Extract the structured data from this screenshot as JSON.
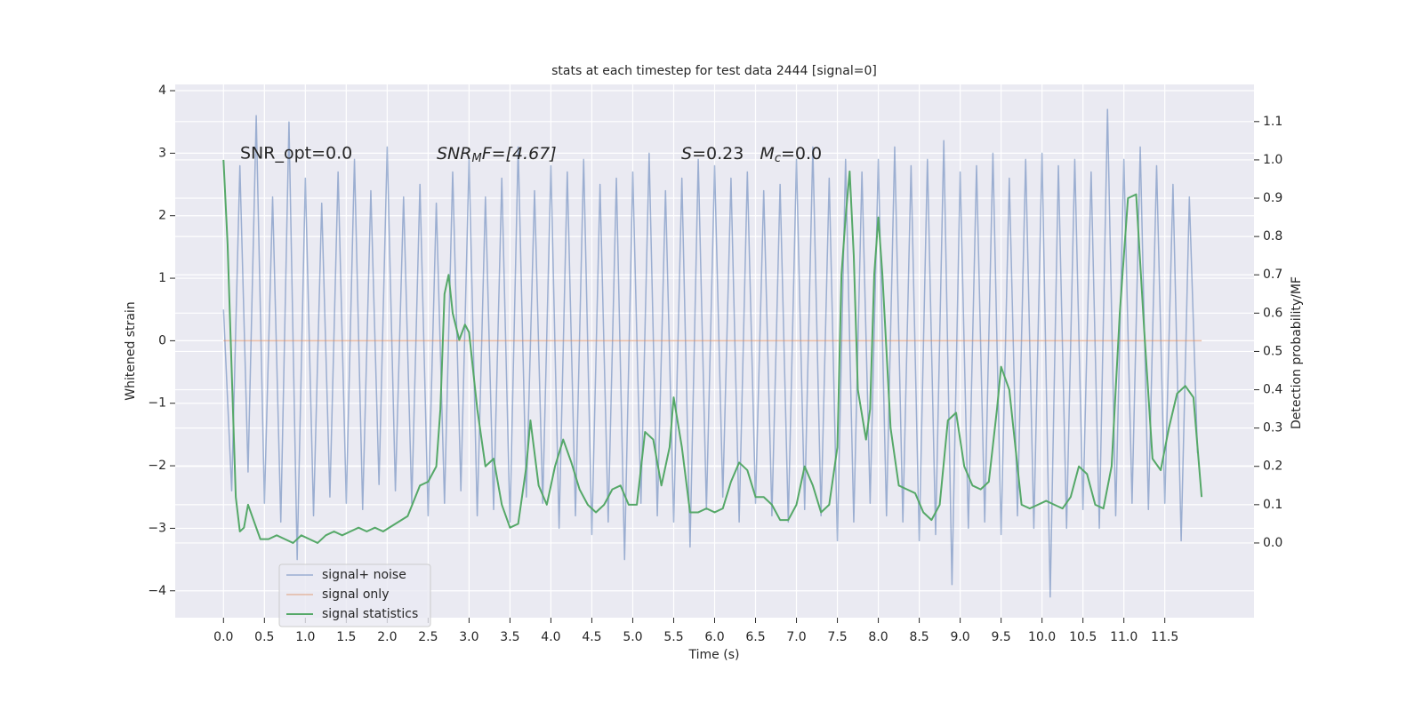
{
  "chart_data": {
    "type": "line",
    "title": "stats at each timestep for test data 2444 [signal=0]",
    "xlabel": "Time (s)",
    "ylabel": "Whitened strain",
    "y2label": "Detection probability/MF",
    "annotations": [
      "SNR_opt=0.0",
      [
        "SNR",
        "M",
        "F=[4.67]"
      ],
      [
        "S",
        "=0.23   ",
        "M",
        "c",
        "=0.0"
      ]
    ],
    "xlim": [
      -0.59,
      12.59
    ],
    "ylim": [
      -4.43,
      4.1
    ],
    "y2lim": [
      -0.195,
      1.197
    ],
    "xticks": [
      {
        "value": 0,
        "label": "0.0"
      },
      0.5,
      {
        "value": 1,
        "label": "1.0"
      },
      1.5,
      {
        "value": 2,
        "label": "2.0"
      },
      2.5,
      {
        "value": 3,
        "label": "3.0"
      },
      3.5,
      {
        "value": 4,
        "label": "4.0"
      },
      4.5,
      {
        "value": 5,
        "label": "5.0"
      },
      5.5,
      {
        "value": 6,
        "label": "6.0"
      },
      6.5,
      {
        "value": 7,
        "label": "7.0"
      },
      7.5,
      {
        "value": 8,
        "label": "8.0"
      },
      8.5,
      {
        "value": 9,
        "label": "9.0"
      },
      9.5,
      {
        "value": 10,
        "label": "10.0"
      },
      10.5,
      {
        "value": 11,
        "label": "11.0"
      },
      11.5
    ],
    "yticks": [
      {
        "value": -4,
        "label": "−4"
      },
      {
        "value": -3,
        "label": "−3"
      },
      {
        "value": -2,
        "label": "−2"
      },
      {
        "value": -1,
        "label": "−1"
      },
      0,
      1,
      2,
      3,
      4
    ],
    "y2ticks": [
      {
        "value": 0,
        "label": "0.0"
      },
      0.1,
      0.2,
      0.3,
      0.4,
      0.5,
      0.6,
      0.7,
      0.8,
      0.9,
      {
        "value": 1,
        "label": "1.0"
      },
      1.1
    ],
    "grid": true,
    "legend": "lower left",
    "series": [
      {
        "name": "signal+ noise",
        "color": "#4c72b0",
        "x": [
          0.0,
          0.1,
          0.2,
          0.3,
          0.4,
          0.5,
          0.6,
          0.7,
          0.8,
          0.9,
          1.0,
          1.1,
          1.2,
          1.3,
          1.4,
          1.5,
          1.6,
          1.7,
          1.8,
          1.9,
          2.0,
          2.1,
          2.2,
          2.3,
          2.4,
          2.5,
          2.6,
          2.7,
          2.8,
          2.9,
          3.0,
          3.1,
          3.2,
          3.3,
          3.4,
          3.5,
          3.6,
          3.7,
          3.8,
          3.9,
          4.0,
          4.1,
          4.2,
          4.3,
          4.4,
          4.5,
          4.6,
          4.7,
          4.8,
          4.9,
          5.0,
          5.1,
          5.2,
          5.3,
          5.4,
          5.5,
          5.6,
          5.7,
          5.8,
          5.9,
          6.0,
          6.1,
          6.2,
          6.3,
          6.4,
          6.5,
          6.6,
          6.7,
          6.8,
          6.9,
          7.0,
          7.1,
          7.2,
          7.3,
          7.4,
          7.5,
          7.6,
          7.7,
          7.8,
          7.9,
          8.0,
          8.1,
          8.2,
          8.3,
          8.4,
          8.5,
          8.6,
          8.7,
          8.8,
          8.9,
          9.0,
          9.1,
          9.2,
          9.3,
          9.4,
          9.5,
          9.6,
          9.7,
          9.8,
          9.9,
          10.0,
          10.1,
          10.2,
          10.3,
          10.4,
          10.5,
          10.6,
          10.7,
          10.8,
          10.9,
          11.0,
          11.1,
          11.2,
          11.3,
          11.4,
          11.5,
          11.6,
          11.7,
          11.8,
          11.9
        ],
        "values": [
          0.5,
          -2.4,
          2.8,
          -2.1,
          3.6,
          -2.6,
          2.3,
          -2.9,
          3.5,
          -3.5,
          2.6,
          -2.8,
          2.2,
          -2.5,
          2.7,
          -2.6,
          2.9,
          -2.7,
          2.4,
          -2.3,
          3.1,
          -2.4,
          2.3,
          -2.6,
          2.5,
          -2.8,
          2.2,
          -2.6,
          2.7,
          -2.4,
          2.9,
          -2.8,
          2.3,
          -2.7,
          2.6,
          -2.9,
          3.1,
          -2.5,
          2.4,
          -2.6,
          2.8,
          -3.0,
          2.7,
          -2.8,
          2.9,
          -3.1,
          2.5,
          -2.9,
          2.6,
          -3.5,
          2.7,
          -2.6,
          3.0,
          -2.8,
          2.4,
          -2.9,
          2.6,
          -3.3,
          2.9,
          -2.7,
          2.8,
          -2.5,
          2.6,
          -2.9,
          2.7,
          -2.6,
          2.4,
          -2.8,
          2.5,
          -2.9,
          2.9,
          -2.7,
          3.1,
          -2.8,
          2.6,
          -3.2,
          2.9,
          -2.9,
          2.7,
          -2.6,
          2.9,
          -2.8,
          3.1,
          -2.9,
          2.8,
          -3.2,
          2.9,
          -3.1,
          3.2,
          -3.9,
          2.7,
          -3.0,
          2.8,
          -2.9,
          3.0,
          -3.1,
          2.6,
          -2.8,
          2.9,
          -3.0,
          3.0,
          -4.1,
          2.8,
          -3.0,
          2.9,
          -2.7,
          2.7,
          -3.0,
          3.7,
          -2.8,
          2.9,
          -2.6,
          3.1,
          -2.7,
          2.8,
          -2.6,
          2.5,
          -3.2,
          2.3,
          -1.8
        ]
      },
      {
        "name": "signal only",
        "color": "#dd8452",
        "x": [
          0.0,
          11.95
        ],
        "values": [
          0,
          0
        ]
      },
      {
        "name": "signal statistics",
        "color": "#55a868",
        "axis": "y2",
        "x": [
          0.0,
          0.05,
          0.1,
          0.15,
          0.2,
          0.25,
          0.3,
          0.35,
          0.45,
          0.55,
          0.65,
          0.75,
          0.85,
          0.95,
          1.05,
          1.15,
          1.25,
          1.35,
          1.45,
          1.55,
          1.65,
          1.75,
          1.85,
          1.95,
          2.1,
          2.25,
          2.4,
          2.5,
          2.6,
          2.65,
          2.7,
          2.75,
          2.8,
          2.88,
          2.95,
          3.0,
          3.1,
          3.2,
          3.3,
          3.4,
          3.5,
          3.6,
          3.7,
          3.75,
          3.85,
          3.95,
          4.05,
          4.15,
          4.25,
          4.35,
          4.45,
          4.55,
          4.65,
          4.75,
          4.85,
          4.95,
          5.05,
          5.15,
          5.25,
          5.35,
          5.45,
          5.5,
          5.6,
          5.7,
          5.8,
          5.9,
          6.0,
          6.1,
          6.2,
          6.3,
          6.4,
          6.5,
          6.6,
          6.7,
          6.8,
          6.9,
          7.0,
          7.1,
          7.2,
          7.3,
          7.4,
          7.5,
          7.55,
          7.6,
          7.65,
          7.7,
          7.75,
          7.85,
          7.9,
          7.95,
          8.0,
          8.05,
          8.15,
          8.25,
          8.35,
          8.45,
          8.55,
          8.65,
          8.75,
          8.85,
          8.95,
          9.05,
          9.15,
          9.25,
          9.35,
          9.45,
          9.5,
          9.6,
          9.75,
          9.85,
          9.95,
          10.05,
          10.15,
          10.25,
          10.35,
          10.45,
          10.55,
          10.65,
          10.75,
          10.85,
          10.95,
          11.05,
          11.15,
          11.25,
          11.35,
          11.45,
          11.55,
          11.65,
          11.75,
          11.85,
          11.95
        ],
        "values": [
          1.0,
          0.78,
          0.45,
          0.12,
          0.03,
          0.04,
          0.1,
          0.07,
          0.01,
          0.01,
          0.02,
          0.01,
          0.0,
          0.02,
          0.01,
          0.0,
          0.02,
          0.03,
          0.02,
          0.03,
          0.04,
          0.03,
          0.04,
          0.03,
          0.05,
          0.07,
          0.15,
          0.16,
          0.2,
          0.35,
          0.65,
          0.7,
          0.6,
          0.53,
          0.57,
          0.55,
          0.35,
          0.2,
          0.22,
          0.1,
          0.04,
          0.05,
          0.2,
          0.32,
          0.15,
          0.1,
          0.2,
          0.27,
          0.21,
          0.14,
          0.1,
          0.08,
          0.1,
          0.14,
          0.15,
          0.1,
          0.1,
          0.29,
          0.27,
          0.15,
          0.25,
          0.38,
          0.25,
          0.08,
          0.08,
          0.09,
          0.08,
          0.09,
          0.16,
          0.21,
          0.19,
          0.12,
          0.12,
          0.1,
          0.06,
          0.06,
          0.1,
          0.2,
          0.15,
          0.08,
          0.1,
          0.25,
          0.7,
          0.85,
          0.97,
          0.75,
          0.4,
          0.27,
          0.35,
          0.7,
          0.85,
          0.7,
          0.3,
          0.15,
          0.14,
          0.13,
          0.08,
          0.06,
          0.1,
          0.32,
          0.34,
          0.2,
          0.15,
          0.14,
          0.16,
          0.35,
          0.46,
          0.4,
          0.1,
          0.09,
          0.1,
          0.11,
          0.1,
          0.09,
          0.12,
          0.2,
          0.18,
          0.1,
          0.09,
          0.2,
          0.6,
          0.9,
          0.91,
          0.55,
          0.22,
          0.19,
          0.3,
          0.39,
          0.41,
          0.38,
          0.12
        ]
      }
    ]
  }
}
